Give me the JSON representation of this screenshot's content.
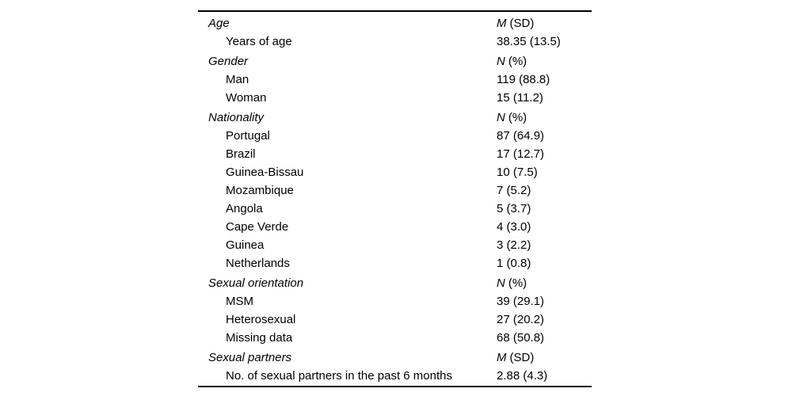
{
  "page": {
    "background_color": "#ffffff",
    "text_color": "#000000",
    "rule_color": "#000000"
  },
  "table": {
    "sections": [
      {
        "label": "Age",
        "stat_symbol": "M",
        "stat_unit": "(SD)",
        "rows": [
          {
            "label": "Years of age",
            "value": "38.35 (13.5)"
          }
        ]
      },
      {
        "label": "Gender",
        "stat_symbol": "N",
        "stat_unit": "(%)",
        "rows": [
          {
            "label": "Man",
            "value": "119 (88.8)"
          },
          {
            "label": "Woman",
            "value": "15 (11.2)"
          }
        ]
      },
      {
        "label": "Nationality",
        "stat_symbol": "N",
        "stat_unit": "(%)",
        "rows": [
          {
            "label": "Portugal",
            "value": "87 (64.9)"
          },
          {
            "label": "Brazil",
            "value": "17 (12.7)"
          },
          {
            "label": "Guinea-Bissau",
            "value": "10 (7.5)"
          },
          {
            "label": "Mozambique",
            "value": "7 (5.2)"
          },
          {
            "label": "Angola",
            "value": "5 (3.7)"
          },
          {
            "label": "Cape Verde",
            "value": "4 (3.0)"
          },
          {
            "label": "Guinea",
            "value": "3 (2.2)"
          },
          {
            "label": "Netherlands",
            "value": "1 (0.8)"
          }
        ]
      },
      {
        "label": "Sexual orientation",
        "stat_symbol": "N",
        "stat_unit": "(%)",
        "rows": [
          {
            "label": "MSM",
            "value": "39 (29.1)"
          },
          {
            "label": "Heterosexual",
            "value": "27 (20.2)"
          },
          {
            "label": "Missing data",
            "value": "68 (50.8)"
          }
        ]
      },
      {
        "label": "Sexual partners",
        "stat_symbol": "M",
        "stat_unit": "(SD)",
        "rows": [
          {
            "label": "No. of sexual partners in the past 6 months",
            "value": "2.88 (4.3)"
          }
        ]
      }
    ]
  }
}
